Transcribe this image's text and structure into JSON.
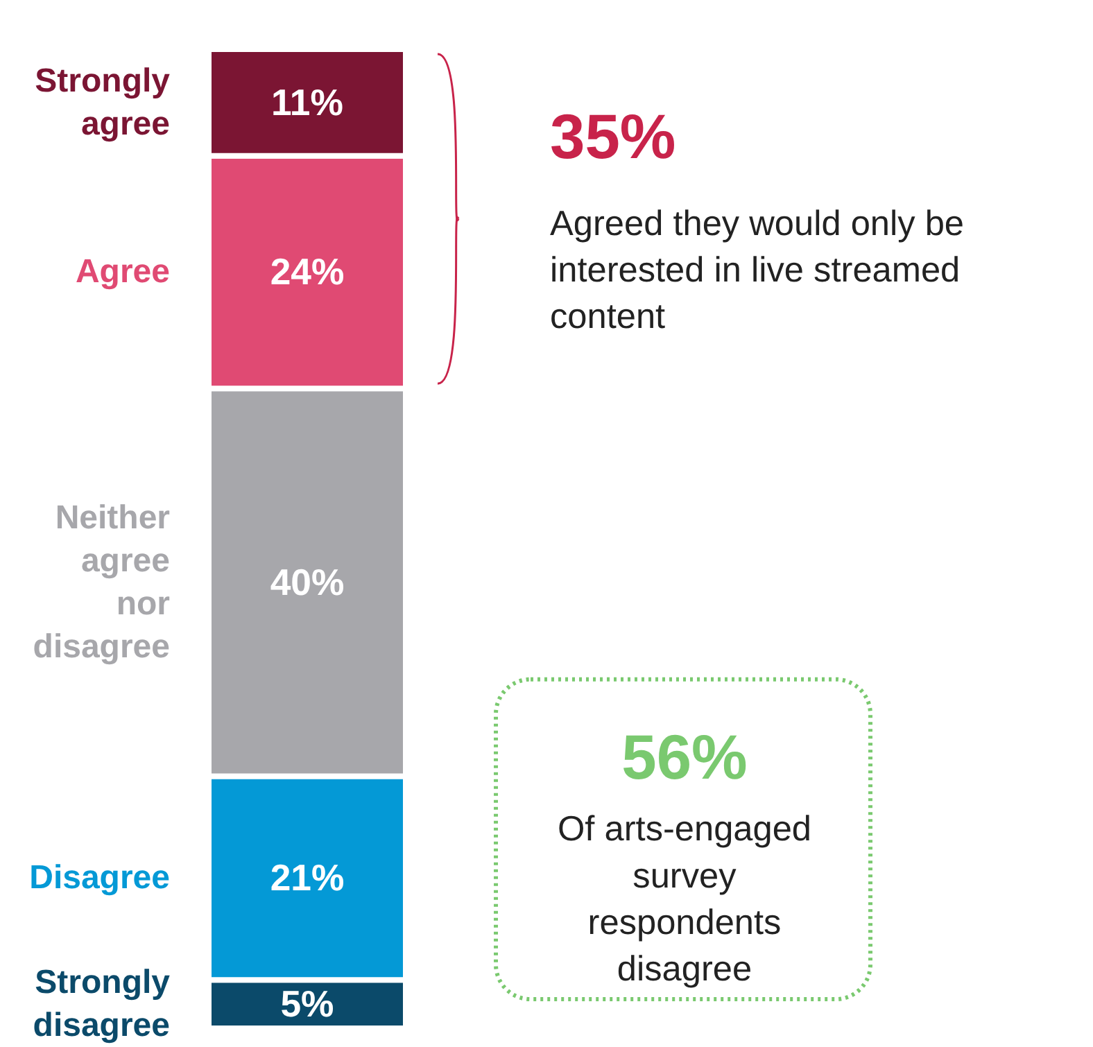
{
  "chart_data": {
    "type": "bar",
    "stacked": true,
    "categories": [
      null
    ],
    "legend": false,
    "grid": false,
    "series": [
      {
        "name": "Strongly disagree",
        "color": "#0b4a6a",
        "values": [
          5
        ],
        "value_labels": [
          "5%"
        ]
      },
      {
        "name": "Disagree",
        "color": "#0499d6",
        "values": [
          21
        ],
        "value_labels": [
          "21%"
        ]
      },
      {
        "name": "Neither agree nor disagree",
        "color": "#a7a7ab",
        "values": [
          40
        ],
        "value_labels": [
          "40%"
        ]
      },
      {
        "name": "Agree",
        "color": "#e04a73",
        "values": [
          24
        ],
        "value_labels": [
          "24%"
        ]
      },
      {
        "name": "Strongly agree",
        "color": "#7b1533",
        "values": [
          11
        ],
        "value_labels": [
          "11%"
        ]
      }
    ],
    "annotations": [
      "35%",
      "Agreed they would only be interested in live streamed content",
      "56%",
      "Of arts-engaged survey respondents disagree"
    ]
  }
}
